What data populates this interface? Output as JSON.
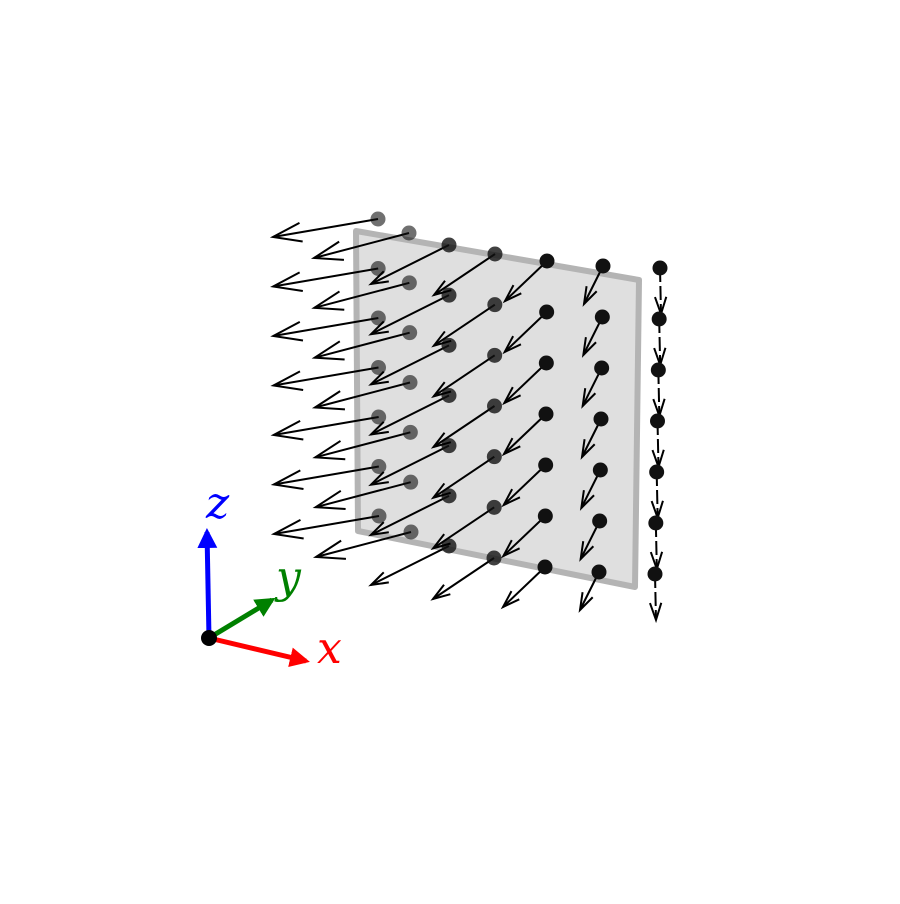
{
  "diagram": {
    "kind": "3d vector field on a square sample plate",
    "grid": {
      "rows": 7,
      "columns": 7
    },
    "plate_color": "#dedede",
    "plate_edge_color": "#b0b0b0",
    "arrow_color": "#000000",
    "point_color": "#111111"
  },
  "axes": {
    "origin_color": "#000000",
    "x": {
      "label": "x",
      "color": "#ff0000"
    },
    "y": {
      "label": "y",
      "color": "#008000"
    },
    "z": {
      "label": "z",
      "color": "#0000ff"
    }
  }
}
